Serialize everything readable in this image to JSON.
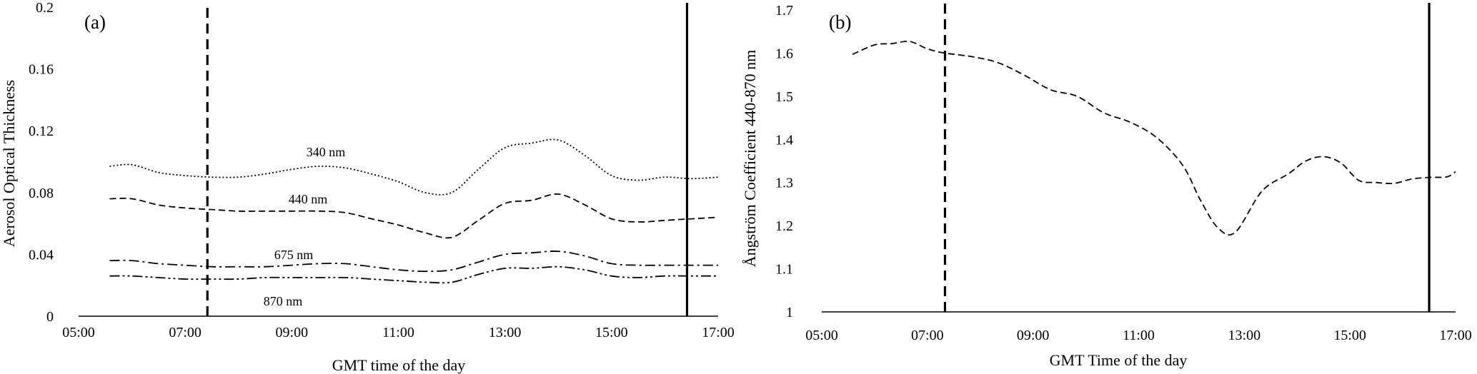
{
  "chart_data": [
    {
      "type": "line",
      "panel_label": "(a)",
      "xlabel": "GMT time of the day",
      "ylabel": "Aerosol Optical Thickness",
      "xlim": [
        "05:00",
        "17:00"
      ],
      "xticks": [
        "05:00",
        "07:00",
        "09:00",
        "11:00",
        "13:00",
        "15:00",
        "17:00"
      ],
      "ylim": [
        0,
        0.2
      ],
      "yticks": [
        "0",
        "0.04",
        "0.08",
        "0.12",
        "0.16",
        "0.2"
      ],
      "grid": false,
      "legend": "none (series labelled inline)",
      "vlines": [
        {
          "x": "07:25",
          "style": "dashed"
        },
        {
          "x": "16:25",
          "style": "solid"
        }
      ],
      "series": [
        {
          "name": "340 nm",
          "dash": "dotted",
          "x": [
            "05:35",
            "06:00",
            "06:30",
            "07:00",
            "07:30",
            "08:00",
            "08:30",
            "09:00",
            "09:30",
            "10:00",
            "10:30",
            "11:00",
            "11:30",
            "12:00",
            "12:30",
            "13:00",
            "13:30",
            "14:00",
            "14:30",
            "15:00",
            "15:30",
            "16:00",
            "16:30",
            "17:00"
          ],
          "values": [
            0.097,
            0.098,
            0.093,
            0.091,
            0.09,
            0.09,
            0.092,
            0.095,
            0.097,
            0.096,
            0.092,
            0.087,
            0.08,
            0.08,
            0.095,
            0.109,
            0.112,
            0.114,
            0.104,
            0.091,
            0.088,
            0.09,
            0.089,
            0.09
          ]
        },
        {
          "name": "440 nm",
          "dash": "dashed",
          "x": [
            "05:35",
            "06:00",
            "06:30",
            "07:00",
            "07:30",
            "08:00",
            "08:30",
            "09:00",
            "09:30",
            "10:00",
            "10:30",
            "11:00",
            "11:30",
            "12:00",
            "12:30",
            "13:00",
            "13:30",
            "14:00",
            "14:30",
            "15:00",
            "15:30",
            "16:00",
            "16:30",
            "17:00"
          ],
          "values": [
            0.076,
            0.076,
            0.072,
            0.07,
            0.069,
            0.068,
            0.068,
            0.068,
            0.068,
            0.067,
            0.063,
            0.059,
            0.054,
            0.051,
            0.062,
            0.073,
            0.075,
            0.079,
            0.072,
            0.063,
            0.061,
            0.062,
            0.063,
            0.064
          ]
        },
        {
          "name": "675 nm",
          "dash": "dash-dot",
          "x": [
            "05:35",
            "06:00",
            "06:30",
            "07:00",
            "07:30",
            "08:00",
            "08:30",
            "09:00",
            "09:30",
            "10:00",
            "10:30",
            "11:00",
            "11:30",
            "12:00",
            "12:30",
            "13:00",
            "13:30",
            "14:00",
            "14:30",
            "15:00",
            "15:30",
            "16:00",
            "16:30",
            "17:00"
          ],
          "values": [
            0.036,
            0.036,
            0.034,
            0.033,
            0.032,
            0.032,
            0.032,
            0.033,
            0.034,
            0.034,
            0.032,
            0.03,
            0.029,
            0.03,
            0.035,
            0.04,
            0.041,
            0.042,
            0.039,
            0.034,
            0.033,
            0.033,
            0.033,
            0.033
          ]
        },
        {
          "name": "870 nm",
          "dash": "dash-dot-dot",
          "x": [
            "05:35",
            "06:00",
            "06:30",
            "07:00",
            "07:30",
            "08:00",
            "08:30",
            "09:00",
            "09:30",
            "10:00",
            "10:30",
            "11:00",
            "11:30",
            "12:00",
            "12:30",
            "13:00",
            "13:30",
            "14:00",
            "14:30",
            "15:00",
            "15:30",
            "16:00",
            "16:30",
            "17:00"
          ],
          "values": [
            0.026,
            0.026,
            0.025,
            0.024,
            0.024,
            0.024,
            0.025,
            0.025,
            0.025,
            0.025,
            0.024,
            0.023,
            0.022,
            0.022,
            0.027,
            0.031,
            0.031,
            0.032,
            0.03,
            0.026,
            0.025,
            0.026,
            0.026,
            0.026
          ]
        }
      ]
    },
    {
      "type": "line",
      "panel_label": "(b)",
      "xlabel": "GMT Time of the day",
      "ylabel": "Ångström Coefficient 440-870 nm",
      "xlim": [
        "05:00",
        "17:00"
      ],
      "xticks": [
        "05:00",
        "07:00",
        "09:00",
        "11:00",
        "13:00",
        "15:00",
        "17:00"
      ],
      "ylim": [
        1,
        1.7
      ],
      "yticks": [
        "1",
        "1.1",
        "1.2",
        "1.3",
        "1.4",
        "1.5",
        "1.6",
        "1.7"
      ],
      "grid": false,
      "legend": "none",
      "vlines": [
        {
          "x": "07:20",
          "style": "dashed"
        },
        {
          "x": "16:30",
          "style": "solid"
        }
      ],
      "series": [
        {
          "dash": "dashed",
          "x": [
            "05:35",
            "06:00",
            "06:20",
            "06:40",
            "07:00",
            "07:20",
            "07:50",
            "08:20",
            "08:50",
            "09:20",
            "09:50",
            "10:20",
            "10:50",
            "11:20",
            "11:50",
            "12:10",
            "12:30",
            "12:50",
            "13:20",
            "13:50",
            "14:10",
            "14:30",
            "14:50",
            "15:10",
            "15:30",
            "15:50",
            "16:10",
            "16:30",
            "16:50",
            "17:00"
          ],
          "values": [
            1.597,
            1.619,
            1.622,
            1.627,
            1.61,
            1.6,
            1.592,
            1.578,
            1.549,
            1.515,
            1.5,
            1.462,
            1.44,
            1.405,
            1.34,
            1.26,
            1.195,
            1.185,
            1.28,
            1.32,
            1.35,
            1.36,
            1.345,
            1.305,
            1.3,
            1.298,
            1.308,
            1.312,
            1.313,
            1.325
          ]
        }
      ]
    }
  ]
}
